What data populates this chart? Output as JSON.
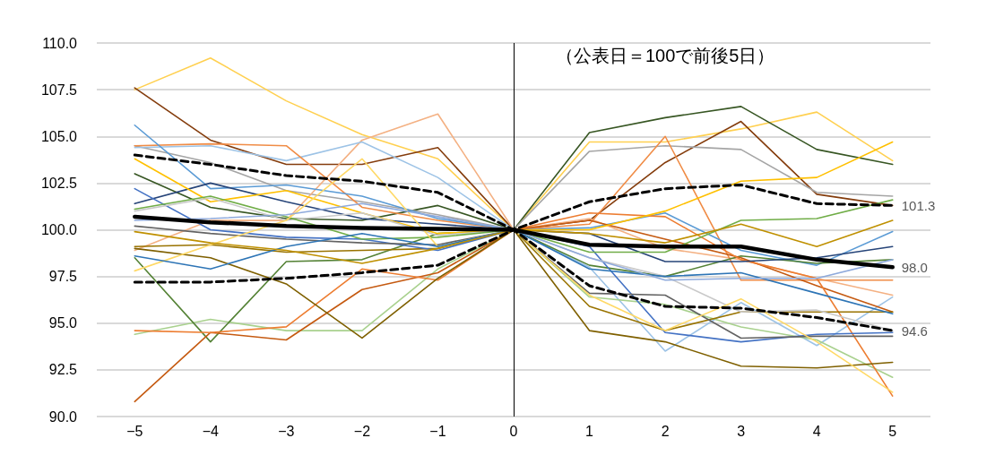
{
  "chart_data": {
    "type": "line",
    "x": [
      -5,
      -4,
      -3,
      -2,
      -1,
      0,
      1,
      2,
      3,
      4,
      5
    ],
    "xlim": [
      -5.5,
      5.5
    ],
    "xticks": [
      {
        "value": -5,
        "label": "−5"
      },
      {
        "value": -4,
        "label": "−4"
      },
      {
        "value": -3,
        "label": "−3"
      },
      {
        "value": -2,
        "label": "−2"
      },
      {
        "value": -1,
        "label": "−1"
      },
      0,
      1,
      2,
      3,
      4,
      5
    ],
    "ylim": [
      90,
      110
    ],
    "yticks": [
      {
        "value": 90,
        "label": "90.0"
      },
      {
        "value": 92.5,
        "label": "92.5"
      },
      {
        "value": 95,
        "label": "95.0"
      },
      {
        "value": 97.5,
        "label": "97.5"
      },
      {
        "value": 100,
        "label": "100.0"
      },
      {
        "value": 102.5,
        "label": "102.5"
      },
      {
        "value": 105,
        "label": "105.0"
      },
      {
        "value": 107.5,
        "label": "107.5"
      },
      {
        "value": 110,
        "label": "110.0"
      }
    ],
    "grid": "y",
    "marker": "none",
    "line_style": "solid",
    "annotations": [
      "（公表日＝100で前後5日）"
    ],
    "ref_lines": [
      {
        "axis": "x",
        "value": 0,
        "color": "#000000"
      }
    ],
    "series": [
      {
        "color": "#ffd050",
        "values": [
          107.5,
          109.2,
          106.9,
          105.1,
          103.8,
          100,
          104.7,
          104.7,
          105.4,
          106.3,
          103.7
        ]
      },
      {
        "color": "#843c0c",
        "values": [
          107.6,
          104.8,
          103.5,
          103.5,
          104.4,
          100,
          100.5,
          103.6,
          105.8,
          101.9,
          101.3
        ]
      },
      {
        "color": "#375623",
        "values": [
          103.0,
          101.2,
          100.6,
          100.5,
          101.3,
          100,
          105.2,
          106.0,
          106.6,
          104.3,
          103.5
        ]
      },
      {
        "color": "#a5a5a5",
        "values": [
          104.5,
          103.6,
          102.1,
          101.5,
          100.8,
          100,
          104.2,
          104.5,
          104.3,
          102.0,
          101.8
        ]
      },
      {
        "color": "#f4b183",
        "values": [
          98.9,
          100.5,
          100.5,
          104.8,
          106.2,
          100,
          100.6,
          99.0,
          98.4,
          97.4,
          96.5
        ]
      },
      {
        "color": "#9dc3e6",
        "values": [
          104.4,
          104.5,
          103.7,
          104.7,
          102.8,
          100,
          98.0,
          93.5,
          96.1,
          93.8,
          96.4
        ]
      },
      {
        "color": "#f08c46",
        "values": [
          104.5,
          104.6,
          104.5,
          101.2,
          100.5,
          100,
          100.3,
          105.0,
          97.3,
          97.3,
          97.3
        ]
      },
      {
        "color": "#5b9bd5",
        "values": [
          105.6,
          102.2,
          102.4,
          101.8,
          100.6,
          100,
          100.1,
          100.9,
          98.9,
          98.1,
          99.9
        ]
      },
      {
        "color": "#a9d18e",
        "values": [
          94.4,
          95.2,
          94.6,
          94.6,
          97.9,
          100,
          96.4,
          96.0,
          94.8,
          94.1,
          92.1
        ]
      },
      {
        "color": "#548235",
        "values": [
          98.5,
          94.0,
          98.3,
          98.4,
          99.8,
          100,
          98.1,
          97.5,
          98.6,
          98.2,
          98.4
        ]
      },
      {
        "color": "#c55a11",
        "values": [
          90.8,
          94.5,
          94.1,
          96.8,
          97.7,
          100,
          100.5,
          99.5,
          98.5,
          97.0,
          95.6
        ]
      },
      {
        "color": "#ed7d31",
        "values": [
          94.6,
          94.5,
          94.8,
          97.9,
          97.3,
          100,
          100.9,
          100.7,
          98.4,
          97.4,
          91.1
        ]
      },
      {
        "color": "#7f6000",
        "values": [
          99.0,
          98.5,
          97.1,
          94.2,
          97.4,
          100,
          94.6,
          94.0,
          92.7,
          92.6,
          92.9
        ]
      },
      {
        "color": "#997300",
        "values": [
          99.1,
          99.2,
          98.8,
          98.9,
          99.0,
          100,
          95.9,
          94.6,
          95.6,
          95.6,
          95.6
        ]
      },
      {
        "color": "#264478",
        "values": [
          101.4,
          102.5,
          101.5,
          100.6,
          100.3,
          100,
          99.8,
          98.3,
          98.3,
          98.5,
          99.1
        ]
      },
      {
        "color": "#4472c4",
        "values": [
          102.2,
          100.0,
          99.6,
          99.5,
          98.9,
          100,
          99.1,
          94.5,
          94.0,
          94.4,
          94.5
        ]
      },
      {
        "color": "#ffc000",
        "values": [
          103.8,
          101.5,
          102.1,
          100.9,
          99.8,
          100,
          100.0,
          101.0,
          102.6,
          102.8,
          104.7
        ]
      },
      {
        "color": "#636363",
        "values": [
          100.2,
          99.8,
          99.5,
          99.3,
          99.2,
          100,
          96.6,
          96.5,
          94.2,
          94.3,
          94.3
        ]
      },
      {
        "color": "#c9c9c9",
        "values": [
          101.0,
          101.7,
          100.5,
          100.9,
          99.7,
          100,
          98.5,
          97.5,
          95.6,
          95.7,
          94.6
        ]
      },
      {
        "color": "#70ad47",
        "values": [
          101.1,
          101.8,
          100.7,
          99.5,
          99.6,
          100,
          98.8,
          98.8,
          100.5,
          100.6,
          101.6
        ]
      },
      {
        "color": "#ffd966",
        "values": [
          97.8,
          99.2,
          100.5,
          103.8,
          99.1,
          100,
          96.5,
          94.6,
          96.3,
          94.0,
          91.3
        ]
      },
      {
        "color": "#2e75b6",
        "values": [
          98.6,
          97.9,
          99.1,
          99.8,
          99.1,
          100,
          97.9,
          97.5,
          97.7,
          96.6,
          95.5
        ]
      },
      {
        "color": "#8faadc",
        "values": [
          100.5,
          100.6,
          100.8,
          101.4,
          100.7,
          100,
          98.5,
          97.3,
          97.4,
          97.4,
          98.4
        ]
      },
      {
        "color": "#bf9000",
        "values": [
          99.9,
          99.3,
          98.9,
          98.2,
          99.0,
          100,
          99.8,
          99.3,
          100.3,
          99.1,
          100.5
        ]
      },
      {
        "color": "#000000",
        "line_style": "dashed",
        "values": [
          104.0,
          103.5,
          102.9,
          102.6,
          102.0,
          100,
          101.5,
          102.2,
          102.4,
          101.4,
          101.3
        ],
        "value_labels": [
          null,
          null,
          null,
          null,
          null,
          null,
          null,
          null,
          null,
          null,
          "101.3"
        ]
      },
      {
        "color": "#000000",
        "values": [
          100.7,
          100.4,
          100.2,
          100.1,
          100.05,
          100,
          99.2,
          99.1,
          99.1,
          98.4,
          98.0
        ],
        "value_labels": [
          null,
          null,
          null,
          null,
          null,
          null,
          null,
          null,
          null,
          null,
          "98.0"
        ]
      },
      {
        "color": "#000000",
        "line_style": "dashed",
        "values": [
          97.2,
          97.2,
          97.4,
          97.7,
          98.1,
          100,
          97.0,
          95.9,
          95.8,
          95.3,
          94.6
        ],
        "value_labels": [
          null,
          null,
          null,
          null,
          null,
          null,
          null,
          null,
          null,
          null,
          "94.6"
        ]
      }
    ]
  }
}
